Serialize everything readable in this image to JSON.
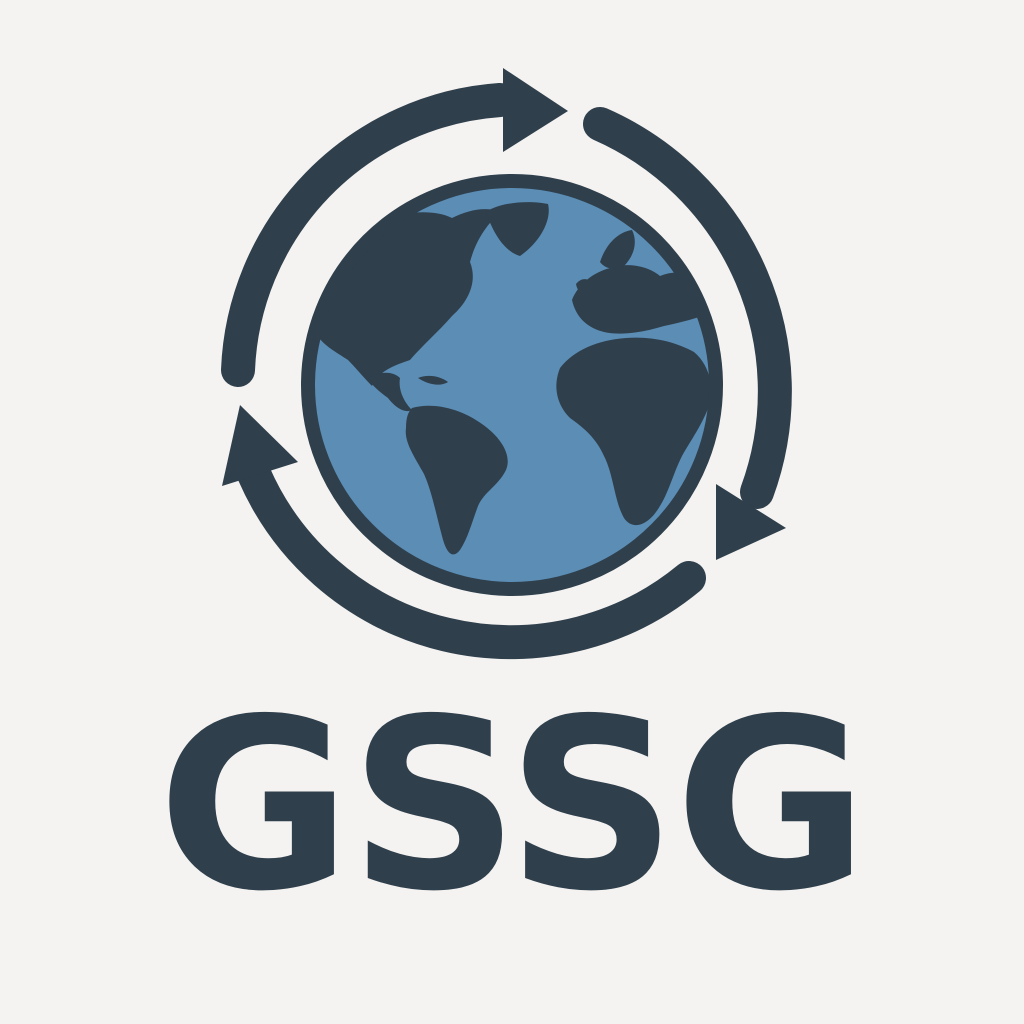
{
  "logo": {
    "wordmark": "GSSG",
    "icon": "globe-with-cycle-arrows-icon",
    "colors": {
      "background": "#f4f3f1",
      "ink": "#2f3f4c",
      "ocean": "#5b8db5"
    }
  }
}
